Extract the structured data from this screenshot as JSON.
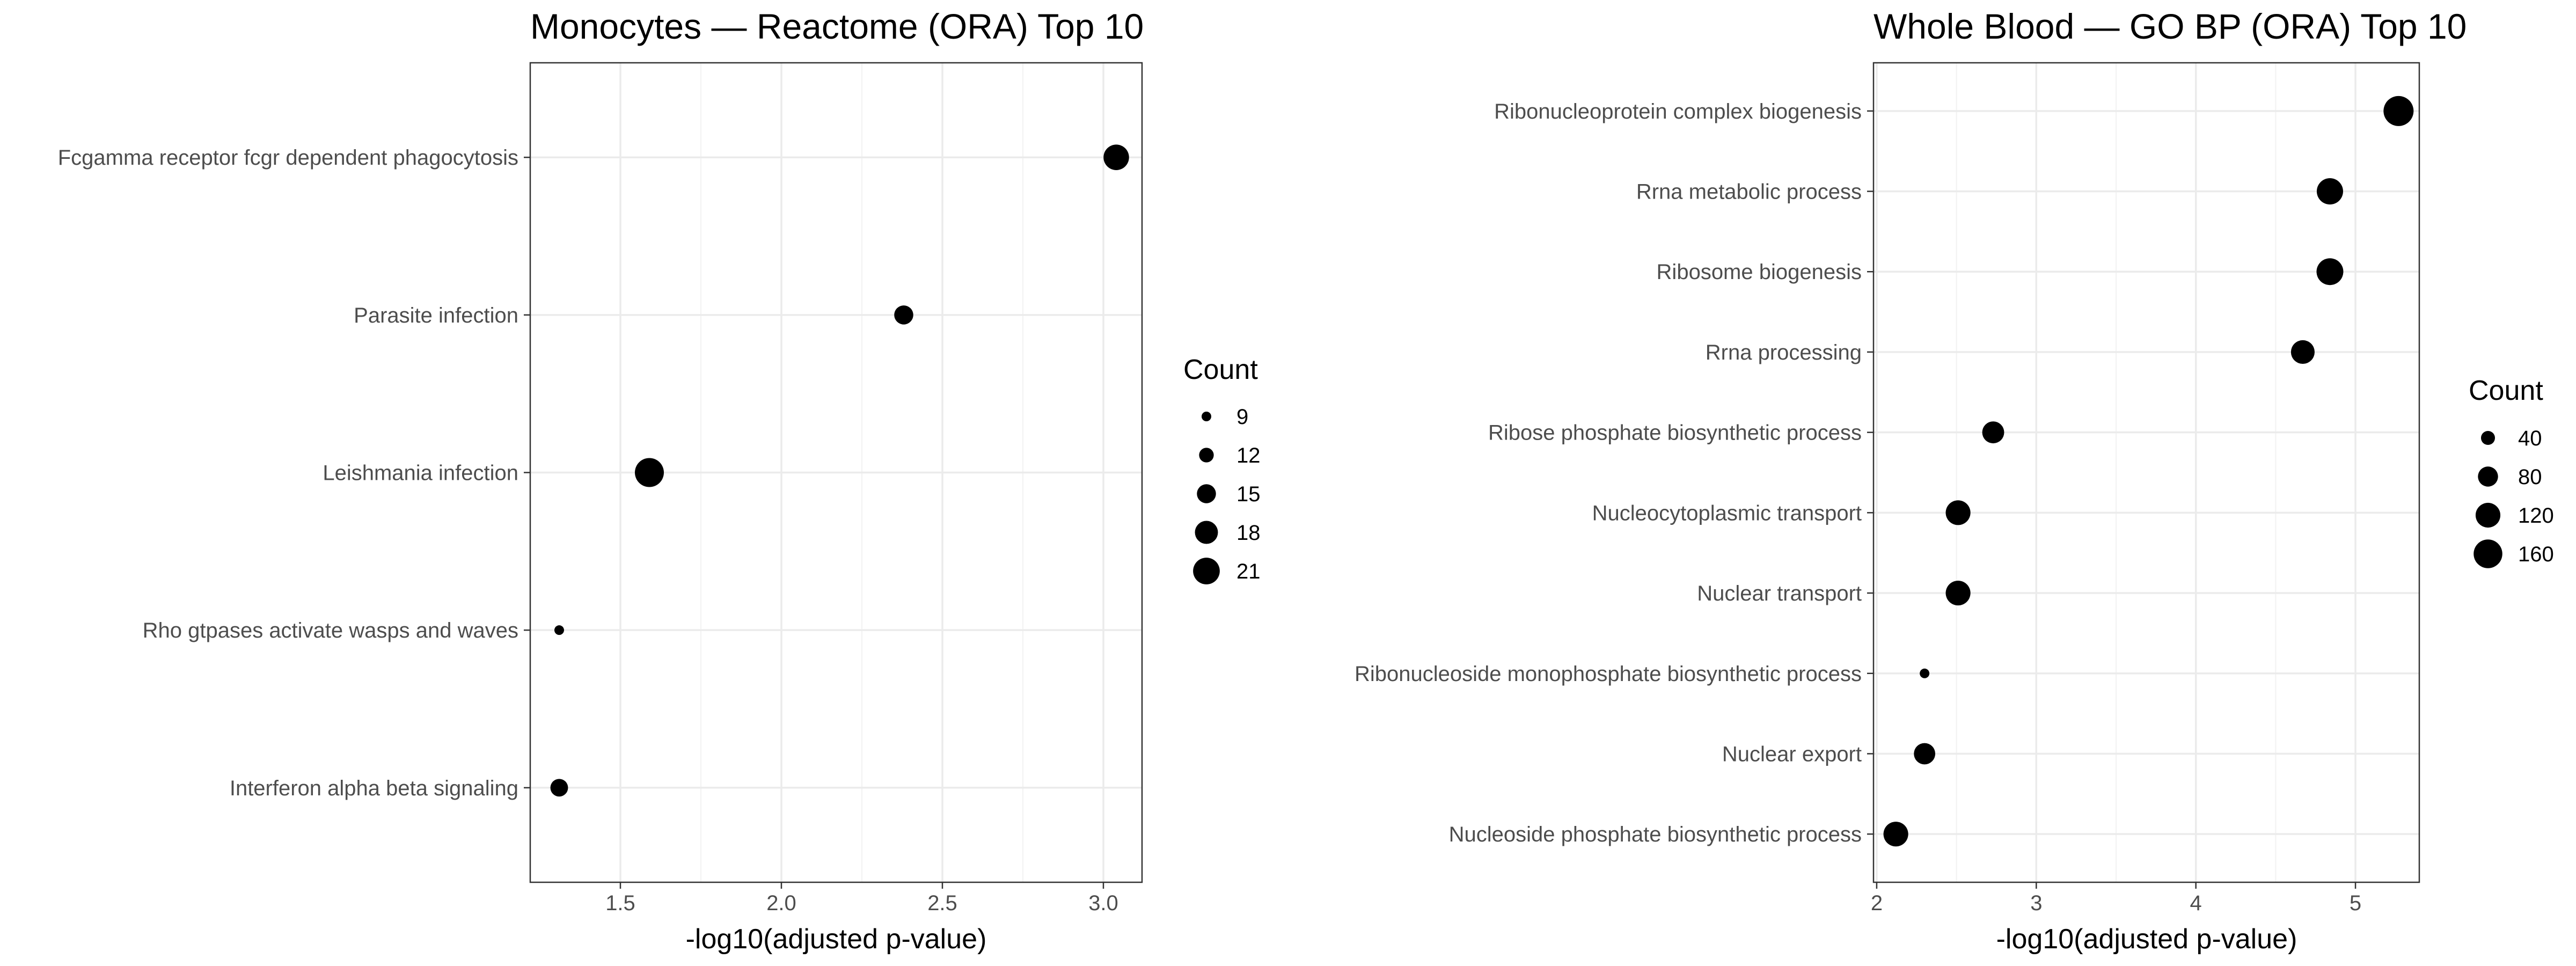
{
  "chart_data": [
    {
      "type": "scatter",
      "title": "Monocytes — Reactome (ORA) Top 10",
      "xlabel": "-log10(adjusted p-value)",
      "ylabel": "",
      "xlim": [
        1.22,
        3.12
      ],
      "xticks": [
        "1.5",
        "2.0",
        "2.5",
        "3.0"
      ],
      "grid": true,
      "legend": {
        "title": "Count",
        "placement": "right",
        "entries": [
          "9",
          "12",
          "15",
          "18",
          "21"
        ]
      },
      "categories": [
        "Fcgamma receptor fcgr dependent phagocytosis",
        "Parasite infection",
        "Leishmania infection",
        "Rho gtpases activate wasps and waves",
        "Interferon alpha beta signaling"
      ],
      "x": [
        3.04,
        2.38,
        1.59,
        1.31,
        1.31
      ],
      "count": [
        20,
        15,
        23,
        9,
        14
      ],
      "ylim_padding": 0.6
    },
    {
      "type": "scatter",
      "title": "Whole Blood — GO BP (ORA) Top 10",
      "xlabel": "-log10(adjusted p-value)",
      "ylabel": "",
      "xlim": [
        1.98,
        5.4
      ],
      "xticks": [
        "2",
        "3",
        "4",
        "5"
      ],
      "grid": true,
      "legend": {
        "title": "Count",
        "placement": "right",
        "entries": [
          "40",
          "80",
          "120",
          "160"
        ]
      },
      "categories": [
        "Ribonucleoprotein complex biogenesis",
        "Rrna metabolic process",
        "Ribosome biogenesis",
        "Rrna processing",
        "Ribose phosphate biosynthetic process",
        "Nucleocytoplasmic transport",
        "Nuclear transport",
        "Ribonucleoside monophosphate biosynthetic process",
        "Nuclear export",
        "Nucleoside phosphate biosynthetic process"
      ],
      "x": [
        5.27,
        4.84,
        4.84,
        4.67,
        2.73,
        2.51,
        2.51,
        2.3,
        2.3,
        2.12
      ],
      "count": [
        175,
        135,
        140,
        110,
        95,
        120,
        120,
        20,
        90,
        120
      ],
      "ylim_padding": 0.6
    }
  ]
}
